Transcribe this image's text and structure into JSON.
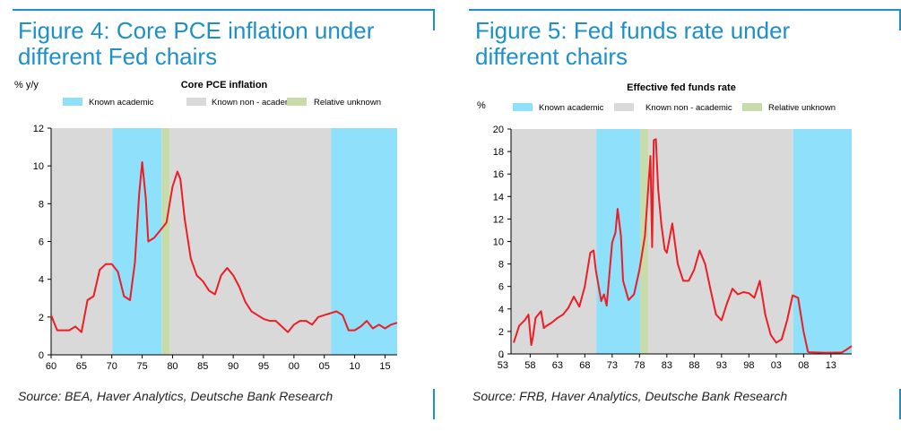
{
  "colors": {
    "frame": "#1e90c9",
    "known_academic": "#8ee0fb",
    "known_non_academic": "#d9d9d9",
    "relative_unknown": "#c8dcab",
    "line": "#ee1c24"
  },
  "chart_data": [
    {
      "type": "line",
      "figure_title": "Figure 4: Core PCE inflation under different Fed chairs",
      "title": "Core PCE inflation",
      "ylabel": "% y/y",
      "xlabel": "",
      "source": "Source: BEA, Haver Analytics, Deutsche Bank Research",
      "legend": [
        "Known academic",
        "Known non - academic",
        "Relative unknown"
      ],
      "legend_placement": "top",
      "xlim": [
        1960,
        2017
      ],
      "ylim": [
        0,
        12
      ],
      "x_ticks": [
        1960,
        1965,
        1970,
        1975,
        1980,
        1985,
        1990,
        1995,
        2000,
        2005,
        2010,
        2015
      ],
      "x_tick_labels": [
        "60",
        "65",
        "70",
        "75",
        "80",
        "85",
        "90",
        "95",
        "00",
        "05",
        "10",
        "15"
      ],
      "y_ticks": [
        0,
        2,
        4,
        6,
        8,
        10,
        12
      ],
      "y_tick_labels": [
        "0",
        "2",
        "4",
        "6",
        "8",
        "10",
        "12"
      ],
      "shading": [
        {
          "start": 1960,
          "end": 1970.1,
          "category": "known_non_academic"
        },
        {
          "start": 1970.1,
          "end": 1978.2,
          "category": "known_academic"
        },
        {
          "start": 1978.2,
          "end": 1979.6,
          "category": "relative_unknown"
        },
        {
          "start": 1979.6,
          "end": 2006.1,
          "category": "known_non_academic"
        },
        {
          "start": 2006.1,
          "end": 2017,
          "category": "known_academic"
        }
      ],
      "series": [
        {
          "name": "Core PCE inflation",
          "x": [
            1960,
            1961,
            1962,
            1963,
            1964,
            1965,
            1966,
            1967,
            1968,
            1969,
            1970,
            1971,
            1972,
            1973,
            1973.8,
            1974.5,
            1975,
            1975.6,
            1976,
            1977,
            1978,
            1979,
            1980,
            1980.8,
            1981.3,
            1982,
            1983,
            1984,
            1985,
            1986,
            1987,
            1988,
            1989,
            1990,
            1991,
            1992,
            1993,
            1994,
            1995,
            1996,
            1997,
            1998,
            1999,
            2000,
            2001,
            2002,
            2003,
            2004,
            2005,
            2006,
            2007,
            2008,
            2009,
            2010,
            2011,
            2012,
            2013,
            2014,
            2015,
            2016,
            2017
          ],
          "values": [
            2.1,
            1.3,
            1.3,
            1.3,
            1.5,
            1.2,
            2.9,
            3.1,
            4.5,
            4.8,
            4.8,
            4.4,
            3.1,
            2.9,
            4.9,
            8.5,
            10.2,
            8.3,
            6.0,
            6.2,
            6.6,
            7.0,
            8.9,
            9.7,
            9.3,
            7.2,
            5.1,
            4.2,
            3.9,
            3.4,
            3.2,
            4.2,
            4.6,
            4.2,
            3.6,
            2.8,
            2.3,
            2.1,
            1.9,
            1.8,
            1.8,
            1.5,
            1.2,
            1.6,
            1.8,
            1.8,
            1.6,
            2.0,
            2.1,
            2.2,
            2.3,
            2.1,
            1.3,
            1.3,
            1.5,
            1.8,
            1.4,
            1.6,
            1.4,
            1.6,
            1.7
          ]
        }
      ]
    },
    {
      "type": "line",
      "figure_title": "Figure 5: Fed funds rate under different chairs",
      "title": "Effective fed funds rate",
      "ylabel": "%",
      "xlabel": "",
      "source": "Source: FRB, Haver Analytics, Deutsche Bank Research",
      "legend": [
        "Known academic",
        "Known non - academic",
        "Relative unknown"
      ],
      "legend_placement": "top",
      "xlim": [
        1954.5,
        2016.8
      ],
      "ylim": [
        0,
        20
      ],
      "x_ticks": [
        1953,
        1958,
        1963,
        1968,
        1973,
        1978,
        1983,
        1988,
        1993,
        1998,
        2003,
        2008,
        2013
      ],
      "x_tick_labels": [
        "53",
        "58",
        "63",
        "68",
        "73",
        "78",
        "83",
        "88",
        "93",
        "98",
        "03",
        "08",
        "13"
      ],
      "y_ticks": [
        0,
        2,
        4,
        6,
        8,
        10,
        12,
        14,
        16,
        18,
        20
      ],
      "y_tick_labels": [
        "0",
        "2",
        "4",
        "6",
        "8",
        "10",
        "12",
        "14",
        "16",
        "18",
        "20"
      ],
      "shading": [
        {
          "start": 1954.5,
          "end": 1970.1,
          "category": "known_non_academic"
        },
        {
          "start": 1970.1,
          "end": 1978.1,
          "category": "known_academic"
        },
        {
          "start": 1978.1,
          "end": 1979.6,
          "category": "relative_unknown"
        },
        {
          "start": 1979.6,
          "end": 2006.1,
          "category": "known_non_academic"
        },
        {
          "start": 2006.1,
          "end": 2016.8,
          "category": "known_academic"
        }
      ],
      "series": [
        {
          "name": "Effective fed funds rate",
          "x": [
            1955,
            1956,
            1957,
            1957.7,
            1958.2,
            1958.5,
            1959,
            1960,
            1960.5,
            1961,
            1962,
            1963,
            1964,
            1965,
            1966,
            1967,
            1968,
            1969,
            1969.6,
            1970,
            1971,
            1971.5,
            1972,
            1973,
            1973.6,
            1974,
            1974.6,
            1975,
            1976,
            1977,
            1978,
            1979,
            1980,
            1980.3,
            1980.6,
            1981,
            1981.4,
            1982,
            1982.6,
            1983,
            1984,
            1985,
            1986,
            1987,
            1988,
            1989,
            1990,
            1991,
            1992,
            1993,
            1994,
            1995,
            1996,
            1997,
            1998,
            1999,
            2000,
            2001,
            2002,
            2003,
            2004,
            2005,
            2006,
            2007,
            2008,
            2008.8,
            2009,
            2012,
            2015,
            2015.9,
            2016.8
          ],
          "values": [
            1.0,
            2.5,
            3.0,
            3.5,
            0.8,
            1.5,
            3.2,
            3.8,
            2.3,
            2.5,
            2.8,
            3.2,
            3.5,
            4.1,
            5.1,
            4.2,
            6.0,
            9.0,
            9.2,
            7.5,
            4.7,
            5.3,
            4.3,
            9.9,
            10.8,
            12.9,
            10.5,
            6.5,
            4.8,
            5.3,
            7.5,
            10.5,
            17.6,
            9.5,
            19.0,
            19.1,
            14.7,
            11.5,
            9.3,
            9.0,
            11.6,
            8.0,
            6.5,
            6.5,
            7.5,
            9.2,
            8.0,
            5.7,
            3.5,
            3.0,
            4.5,
            5.8,
            5.3,
            5.5,
            5.4,
            5.0,
            6.5,
            3.5,
            1.7,
            1.0,
            1.3,
            3.0,
            5.2,
            5.0,
            2.0,
            0.2,
            0.15,
            0.1,
            0.13,
            0.4,
            0.7
          ]
        }
      ]
    }
  ]
}
